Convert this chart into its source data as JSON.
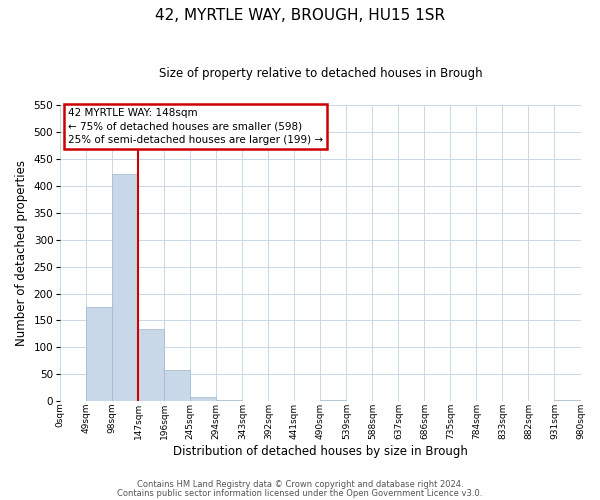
{
  "title": "42, MYRTLE WAY, BROUGH, HU15 1SR",
  "subtitle": "Size of property relative to detached houses in Brough",
  "xlabel": "Distribution of detached houses by size in Brough",
  "ylabel": "Number of detached properties",
  "bin_edges": [
    0,
    49,
    98,
    147,
    196,
    245,
    294,
    343,
    392,
    441,
    490,
    539,
    588,
    637,
    686,
    735,
    784,
    833,
    882,
    931,
    980
  ],
  "bin_labels": [
    "0sqm",
    "49sqm",
    "98sqm",
    "147sqm",
    "196sqm",
    "245sqm",
    "294sqm",
    "343sqm",
    "392sqm",
    "441sqm",
    "490sqm",
    "539sqm",
    "588sqm",
    "637sqm",
    "686sqm",
    "735sqm",
    "784sqm",
    "833sqm",
    "882sqm",
    "931sqm",
    "980sqm"
  ],
  "counts": [
    0,
    175,
    422,
    134,
    58,
    7,
    2,
    0,
    0,
    0,
    2,
    0,
    0,
    0,
    0,
    0,
    0,
    0,
    0,
    2
  ],
  "bar_color": "#c8d8e8",
  "bar_edge_color": "#a0b8cc",
  "vline_x": 147,
  "vline_color": "#cc0000",
  "ylim": [
    0,
    550
  ],
  "yticks": [
    0,
    50,
    100,
    150,
    200,
    250,
    300,
    350,
    400,
    450,
    500,
    550
  ],
  "annotation_line1": "42 MYRTLE WAY: 148sqm",
  "annotation_line2": "← 75% of detached houses are smaller (598)",
  "annotation_line3": "25% of semi-detached houses are larger (199) →",
  "annotation_box_color": "#cc0000",
  "footer_line1": "Contains HM Land Registry data © Crown copyright and database right 2024.",
  "footer_line2": "Contains public sector information licensed under the Open Government Licence v3.0.",
  "bg_color": "#ffffff",
  "grid_color": "#c8d8e8"
}
